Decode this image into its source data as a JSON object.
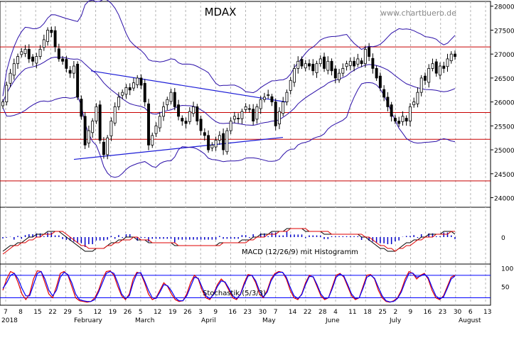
{
  "title": "MDAX",
  "watermark": "www.chartbuero.de",
  "colors": {
    "candle": "#000000",
    "bollinger": "#2b0fa8",
    "red_line": "#c80000",
    "trend_line": "#1a1ad6",
    "macd_line": "#000000",
    "signal_line": "#e00000",
    "histogram": "#0000c8",
    "stoch_k": "#e00000",
    "stoch_d": "#0000ff",
    "grid": "#b4b4b4"
  },
  "x_axis": {
    "day_labels": [
      "7",
      "8",
      "15",
      "22",
      "29",
      "5",
      "12",
      "19",
      "26",
      "5",
      "12",
      "19",
      "26",
      "3",
      "9",
      "16",
      "23",
      "30",
      "7",
      "14",
      "22",
      "28",
      "4",
      "11",
      "18",
      "25",
      "2",
      "9",
      "16",
      "23",
      "30",
      "6",
      "13"
    ],
    "month_labels": [
      "2018",
      "February",
      "March",
      "April",
      "May",
      "June",
      "July",
      "August"
    ]
  },
  "price_axis": {
    "ticks": [
      "28000",
      "27500",
      "27000",
      "26500",
      "26000",
      "25500",
      "25000",
      "24500",
      "24000"
    ],
    "ylim": [
      23800,
      28100
    ]
  },
  "macd_panel": {
    "label": "MACD (12/26/9) mit Histogramm",
    "ticks": [
      "0"
    ]
  },
  "stoch_panel": {
    "label": "Stochastik (5/3/3)",
    "ticks": [
      "100",
      "50"
    ]
  },
  "chart_data": [
    {
      "type": "candlestick",
      "title": "MDAX",
      "ylim": [
        23800,
        28100
      ],
      "start_label": "7",
      "series": [
        {
          "name": "close",
          "values": [
            26000,
            26350,
            26600,
            26800,
            26950,
            27050,
            27100,
            26900,
            26850,
            26950,
            27100,
            27300,
            27500,
            27450,
            27150,
            26900,
            26850,
            26700,
            26600,
            26750,
            26100,
            25700,
            25100,
            25400,
            25600,
            25900,
            25200,
            24900,
            25250,
            25600,
            25900,
            26100,
            26200,
            26300,
            26250,
            26400,
            26500,
            26350,
            26000,
            25100,
            25300,
            25500,
            25700,
            25900,
            26050,
            26200,
            25900,
            25700,
            25600,
            25550,
            25800,
            25900,
            25600,
            25400,
            25300,
            25000,
            25100,
            25200,
            25300,
            25000,
            25400,
            25600,
            25700,
            25650,
            25800,
            25900,
            25850,
            25600,
            25900,
            26050,
            26100,
            26150,
            26000,
            25500,
            25800,
            26000,
            26200,
            26450,
            26700,
            26850,
            26750,
            26800,
            26750,
            26650,
            26800,
            26900,
            26700,
            26850,
            26650,
            26500,
            26600,
            26700,
            26800,
            26850,
            26750,
            26900,
            26800,
            27100,
            26950,
            26700,
            26500,
            26300,
            26100,
            25900,
            25700,
            25600,
            25550,
            25700,
            25600,
            25900,
            26000,
            26200,
            26500,
            26450,
            26700,
            26800,
            26600,
            26750,
            26700,
            26900,
            27000,
            26950
          ]
        }
      ]
    },
    {
      "type": "line",
      "title": "MACD (12/26/9) mit Histogramm",
      "x_start_label": "7",
      "series": [
        {
          "name": "MACD",
          "values": [
            -5,
            -4,
            -3,
            -3,
            -2,
            -2,
            -1,
            0,
            0,
            1,
            1,
            1,
            2,
            2,
            2,
            2,
            1,
            0,
            -1,
            -2,
            -3,
            -4,
            -5,
            -5,
            -5,
            -4,
            -4,
            -4,
            -3,
            -2,
            -2,
            -1,
            -1,
            0,
            0,
            0,
            -1,
            -1,
            -1,
            -2,
            -2,
            -2,
            -2,
            -2,
            -2,
            -2,
            -3,
            -3,
            -3,
            -3,
            -3,
            -3,
            -3,
            -3,
            -3,
            -3,
            -3,
            -3,
            -2,
            -2,
            -2,
            -2,
            -2,
            -2,
            -1,
            -1,
            -1,
            0,
            0,
            1,
            1,
            1,
            2,
            2,
            2,
            2,
            3,
            3,
            3,
            3,
            3,
            2,
            2,
            2,
            2,
            2,
            1,
            1,
            1,
            1,
            1,
            1,
            1,
            1,
            1,
            1,
            0,
            0,
            -1,
            -2,
            -3,
            -4,
            -4,
            -5,
            -5,
            -5,
            -4,
            -3,
            -2,
            -2,
            -1,
            -1,
            0,
            0,
            1,
            1,
            1,
            1,
            2,
            2,
            2,
            1
          ]
        },
        {
          "name": "Signal",
          "values": [
            -6,
            -5,
            -4,
            -3,
            -3,
            -2,
            -2,
            -1,
            -1,
            0,
            0,
            1,
            1,
            1,
            2,
            2,
            2,
            1,
            0,
            -1,
            -2,
            -3,
            -3,
            -4,
            -4,
            -4,
            -4,
            -4,
            -3,
            -3,
            -2,
            -2,
            -1,
            -1,
            -1,
            0,
            0,
            -1,
            -1,
            -1,
            -2,
            -2,
            -2,
            -2,
            -2,
            -2,
            -2,
            -3,
            -3,
            -3,
            -3,
            -3,
            -3,
            -3,
            -3,
            -3,
            -3,
            -3,
            -3,
            -2,
            -2,
            -2,
            -2,
            -2,
            -2,
            -2,
            -1,
            -1,
            0,
            0,
            0,
            1,
            1,
            1,
            2,
            2,
            2,
            3,
            3,
            3,
            3,
            3,
            2,
            2,
            2,
            2,
            2,
            2,
            1,
            1,
            1,
            1,
            1,
            1,
            1,
            1,
            1,
            0,
            0,
            -1,
            -2,
            -3,
            -3,
            -4,
            -4,
            -5,
            -4,
            -4,
            -3,
            -3,
            -2,
            -1,
            -1,
            0,
            0,
            0,
            1,
            1,
            1,
            1,
            2,
            2
          ]
        }
      ]
    },
    {
      "type": "line",
      "title": "Stochastik (5/3/3)",
      "ylim": [
        0,
        110
      ],
      "x_start_label": "7",
      "series": [
        {
          "name": "%K",
          "values": [
            40,
            70,
            90,
            85,
            60,
            30,
            15,
            30,
            70,
            92,
            90,
            60,
            30,
            20,
            50,
            85,
            90,
            80,
            50,
            20,
            12,
            10,
            8,
            10,
            20,
            40,
            70,
            90,
            92,
            80,
            50,
            25,
            15,
            30,
            70,
            88,
            85,
            60,
            30,
            15,
            20,
            40,
            60,
            50,
            30,
            15,
            10,
            12,
            30,
            60,
            80,
            70,
            40,
            20,
            15,
            30,
            55,
            70,
            60,
            40,
            20,
            15,
            30,
            60,
            82,
            80,
            60,
            30,
            20,
            40,
            70,
            85,
            90,
            88,
            70,
            40,
            20,
            15,
            30,
            60,
            80,
            75,
            50,
            25,
            15,
            20,
            50,
            80,
            85,
            75,
            50,
            25,
            15,
            20,
            50,
            80,
            82,
            70,
            40,
            20,
            10,
            8,
            12,
            20,
            40,
            70,
            90,
            85,
            70,
            80,
            85,
            70,
            40,
            20,
            15,
            25,
            50,
            75,
            80
          ]
        },
        {
          "name": "%D",
          "values": [
            45,
            60,
            80,
            85,
            70,
            45,
            25,
            25,
            55,
            85,
            90,
            70,
            40,
            25,
            40,
            75,
            88,
            82,
            60,
            30,
            15,
            12,
            10,
            10,
            15,
            35,
            60,
            85,
            90,
            85,
            60,
            30,
            18,
            25,
            60,
            85,
            87,
            65,
            40,
            20,
            18,
            35,
            55,
            52,
            38,
            20,
            12,
            12,
            25,
            50,
            75,
            72,
            48,
            25,
            18,
            28,
            50,
            65,
            62,
            45,
            25,
            18,
            28,
            55,
            78,
            80,
            65,
            38,
            22,
            35,
            65,
            82,
            88,
            88,
            75,
            48,
            25,
            18,
            28,
            55,
            77,
            76,
            55,
            30,
            18,
            20,
            45,
            75,
            83,
            78,
            55,
            30,
            18,
            20,
            45,
            75,
            80,
            72,
            48,
            25,
            12,
            9,
            10,
            18,
            35,
            62,
            85,
            86,
            75,
            78,
            83,
            74,
            48,
            25,
            17,
            22,
            45,
            70,
            78
          ]
        }
      ]
    }
  ]
}
